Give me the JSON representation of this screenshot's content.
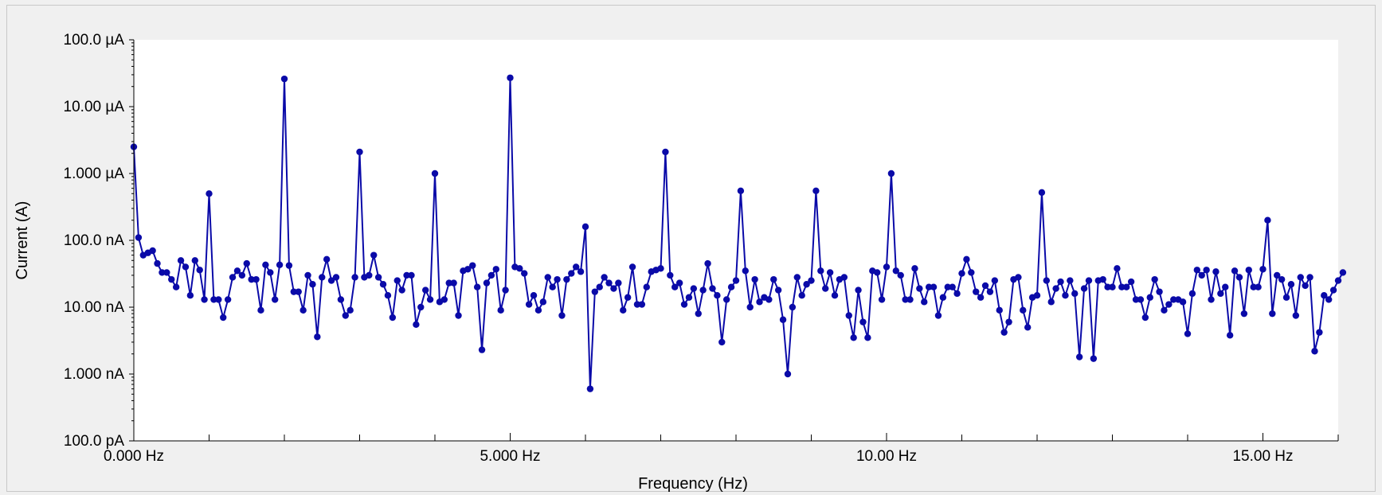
{
  "chart_data": {
    "type": "line",
    "title": "",
    "xlabel": "Frequency (Hz)",
    "ylabel": "Current (A)",
    "xlim": [
      0,
      16
    ],
    "ylim": [
      1e-10,
      0.0001
    ],
    "y_scale": "log",
    "grid": false,
    "legend": "none",
    "x_ticks": [
      {
        "value": 0,
        "label": "0.000 Hz"
      },
      {
        "value": 5,
        "label": "5.000 Hz"
      },
      {
        "value": 10,
        "label": "10.00 Hz"
      },
      {
        "value": 15,
        "label": "15.00 Hz"
      }
    ],
    "y_ticks": [
      {
        "value": 0.0001,
        "label": "100.0 µA"
      },
      {
        "value": 1e-05,
        "label": "10.00 µA"
      },
      {
        "value": 1e-06,
        "label": "1.000 µA"
      },
      {
        "value": 1e-07,
        "label": "100.0 nA"
      },
      {
        "value": 1e-08,
        "label": "10.00 nA"
      },
      {
        "value": 1e-09,
        "label": "1.000 nA"
      },
      {
        "value": 1e-10,
        "label": "100.0 pA"
      }
    ],
    "colors": {
      "series": "#0a0aa8",
      "axis": "#000000",
      "plot_bg": "#ffffff"
    },
    "series": [
      {
        "x_start": 0,
        "x_step": 0.0625,
        "values": [
          2.5e-06,
          1.1e-07,
          6e-08,
          6.5e-08,
          7e-08,
          4.5e-08,
          3.3e-08,
          3.3e-08,
          2.6e-08,
          2e-08,
          5e-08,
          4e-08,
          1.5e-08,
          5e-08,
          3.6e-08,
          1.3e-08,
          5e-07,
          1.3e-08,
          1.3e-08,
          7e-09,
          1.3e-08,
          2.8e-08,
          3.5e-08,
          3e-08,
          4.5e-08,
          2.6e-08,
          2.6e-08,
          9e-09,
          4.3e-08,
          3.3e-08,
          1.3e-08,
          4.3e-08,
          2.6e-05,
          4.2e-08,
          1.7e-08,
          1.7e-08,
          9e-09,
          3e-08,
          2.2e-08,
          3.6e-09,
          2.8e-08,
          5.2e-08,
          2.5e-08,
          2.8e-08,
          1.3e-08,
          7.5e-09,
          9e-09,
          2.8e-08,
          2.1e-06,
          2.8e-08,
          3e-08,
          6e-08,
          2.8e-08,
          2.2e-08,
          1.5e-08,
          7e-09,
          2.5e-08,
          1.8e-08,
          3e-08,
          3e-08,
          5.5e-09,
          1e-08,
          1.8e-08,
          1.3e-08,
          1e-06,
          1.2e-08,
          1.3e-08,
          2.3e-08,
          2.3e-08,
          7.5e-09,
          3.5e-08,
          3.7e-08,
          4.2e-08,
          2e-08,
          2.3e-09,
          2.3e-08,
          3e-08,
          3.7e-08,
          9e-09,
          1.8e-08,
          2.7e-05,
          4e-08,
          3.8e-08,
          3.2e-08,
          1.1e-08,
          1.5e-08,
          9e-09,
          1.2e-08,
          2.8e-08,
          2e-08,
          2.6e-08,
          7.5e-09,
          2.6e-08,
          3.2e-08,
          4e-08,
          3.4e-08,
          1.6e-07,
          6e-10,
          1.7e-08,
          2e-08,
          2.8e-08,
          2.3e-08,
          1.9e-08,
          2.3e-08,
          9e-09,
          1.4e-08,
          4e-08,
          1.1e-08,
          1.1e-08,
          2e-08,
          3.4e-08,
          3.6e-08,
          3.8e-08,
          2.1e-06,
          3e-08,
          2e-08,
          2.3e-08,
          1.1e-08,
          1.4e-08,
          1.9e-08,
          8e-09,
          1.8e-08,
          4.5e-08,
          1.9e-08,
          1.5e-08,
          3e-09,
          1.3e-08,
          2e-08,
          2.5e-08,
          5.5e-07,
          3.5e-08,
          1e-08,
          2.6e-08,
          1.2e-08,
          1.4e-08,
          1.3e-08,
          2.6e-08,
          1.8e-08,
          6.5e-09,
          1e-09,
          1e-08,
          2.8e-08,
          1.5e-08,
          2.2e-08,
          2.5e-08,
          5.5e-07,
          3.5e-08,
          1.9e-08,
          3.3e-08,
          1.5e-08,
          2.6e-08,
          2.8e-08,
          7.5e-09,
          3.5e-09,
          1.8e-08,
          6e-09,
          3.5e-09,
          3.5e-08,
          3.3e-08,
          1.3e-08,
          4e-08,
          1e-06,
          3.5e-08,
          3e-08,
          1.3e-08,
          1.3e-08,
          3.8e-08,
          1.9e-08,
          1.2e-08,
          2e-08,
          2e-08,
          7.5e-09,
          1.4e-08,
          2e-08,
          2e-08,
          1.6e-08,
          3.2e-08,
          5.2e-08,
          3.3e-08,
          1.7e-08,
          1.4e-08,
          2.1e-08,
          1.7e-08,
          2.5e-08,
          9e-09,
          4.2e-09,
          6e-09,
          2.6e-08,
          2.8e-08,
          9e-09,
          5e-09,
          1.4e-08,
          1.5e-08,
          5.2e-07,
          2.5e-08,
          1.2e-08,
          1.9e-08,
          2.4e-08,
          1.5e-08,
          2.5e-08,
          1.6e-08,
          1.8e-09,
          1.9e-08,
          2.5e-08,
          1.7e-09,
          2.5e-08,
          2.6e-08,
          2e-08,
          2e-08,
          3.8e-08,
          2e-08,
          2e-08,
          2.4e-08,
          1.3e-08,
          1.3e-08,
          7e-09,
          1.4e-08,
          2.6e-08,
          1.7e-08,
          9e-09,
          1.1e-08,
          1.3e-08,
          1.3e-08,
          1.2e-08,
          4e-09,
          1.6e-08,
          3.6e-08,
          3e-08,
          3.6e-08,
          1.3e-08,
          3.4e-08,
          1.6e-08,
          2e-08,
          3.8e-09,
          3.5e-08,
          2.8e-08,
          8e-09,
          3.6e-08,
          2e-08,
          2e-08,
          3.7e-08,
          2e-07,
          8e-09,
          3e-08,
          2.6e-08,
          1.4e-08,
          2.2e-08,
          7.5e-09,
          2.8e-08,
          2.1e-08,
          2.8e-08,
          2.2e-09,
          4.2e-09,
          1.5e-08,
          1.3e-08,
          1.8e-08,
          2.5e-08,
          3.3e-08
        ]
      }
    ]
  }
}
